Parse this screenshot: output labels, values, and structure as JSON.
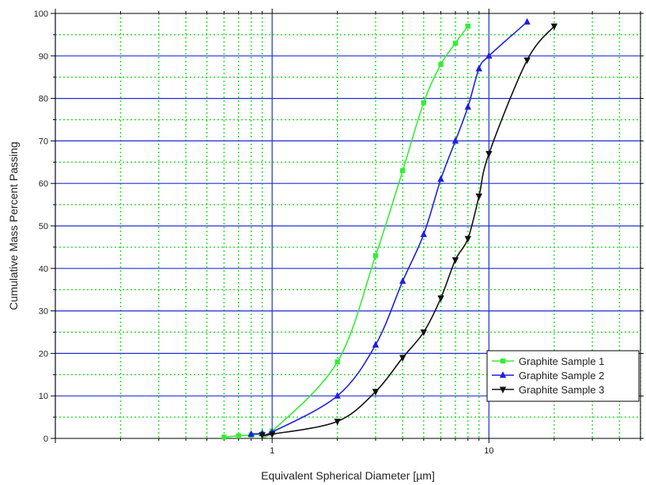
{
  "chart_data": {
    "type": "line",
    "title": "",
    "xlabel": "Equivalent Spherical Diameter [µm]",
    "ylabel": "Cumulative Mass Percent Passing",
    "x_scale": "log",
    "xlim": [
      0.1,
      50
    ],
    "ylim": [
      0,
      100
    ],
    "x_ticks_labeled": [
      {
        "value": 1,
        "label": "1"
      },
      {
        "value": 10,
        "label": "10"
      }
    ],
    "y_ticks": [
      0,
      10,
      20,
      30,
      40,
      50,
      60,
      70,
      80,
      90,
      100
    ],
    "grid": {
      "major": {
        "on": true,
        "color": "#1f2fd0",
        "style": "solid"
      },
      "minor": {
        "on": true,
        "color": "#22dd22",
        "style": "dotted"
      }
    },
    "legend": {
      "position": "bottom-right"
    },
    "series": [
      {
        "name": "Graphite Sample 1",
        "color": "#33ee33",
        "marker": "square",
        "points": [
          [
            0.6,
            0.3
          ],
          [
            0.7,
            0.6
          ],
          [
            0.8,
            0.8
          ],
          [
            0.9,
            1.0
          ],
          [
            1.0,
            1.7
          ],
          [
            2.0,
            18
          ],
          [
            3.0,
            43
          ],
          [
            4.0,
            63
          ],
          [
            5.0,
            79
          ],
          [
            6.0,
            88
          ],
          [
            7.0,
            93
          ],
          [
            8.0,
            97
          ]
        ]
      },
      {
        "name": "Graphite Sample 2",
        "color": "#1f1fe0",
        "marker": "triangle-up",
        "points": [
          [
            0.8,
            1.0
          ],
          [
            0.9,
            1.2
          ],
          [
            1.0,
            1.5
          ],
          [
            2.0,
            10
          ],
          [
            3.0,
            22
          ],
          [
            4.0,
            37
          ],
          [
            5.0,
            48
          ],
          [
            6.0,
            61
          ],
          [
            7.0,
            70
          ],
          [
            8.0,
            78
          ],
          [
            9.0,
            87
          ],
          [
            10,
            90
          ],
          [
            15,
            98
          ]
        ]
      },
      {
        "name": "Graphite Sample 3",
        "color": "#111111",
        "marker": "triangle-down",
        "points": [
          [
            0.9,
            0.8
          ],
          [
            1.0,
            1.0
          ],
          [
            2.0,
            4
          ],
          [
            3.0,
            11
          ],
          [
            4.0,
            19
          ],
          [
            5.0,
            25
          ],
          [
            6.0,
            33
          ],
          [
            7.0,
            42
          ],
          [
            8.0,
            47
          ],
          [
            9.0,
            57
          ],
          [
            10,
            67
          ],
          [
            15,
            89
          ],
          [
            20,
            97
          ]
        ]
      }
    ]
  }
}
